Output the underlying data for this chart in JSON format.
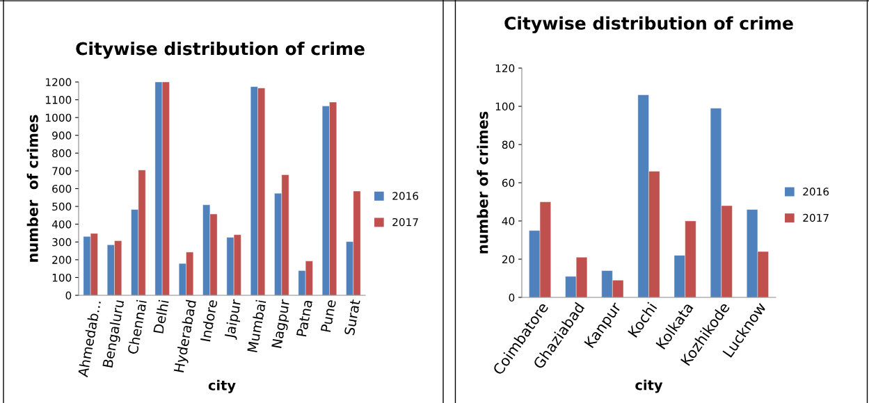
{
  "chart_data": [
    {
      "type": "bar",
      "title": "Citywise distribution of crime",
      "xlabel": "city",
      "ylabel": "number  of crimes",
      "categories": [
        "Ahmedab…",
        "Bengaluru",
        "Chennai",
        "Delhi",
        "Hyderabad",
        "Indore",
        "Jaipur",
        "Mumbai",
        "Nagpur",
        "Patna",
        "Pune",
        "Surat"
      ],
      "series": [
        {
          "name": "2016",
          "color": "#4f81bd",
          "values": [
            331,
            284,
            483,
            1200,
            179,
            509,
            326,
            1174,
            574,
            139,
            1065,
            302
          ]
        },
        {
          "name": "2017",
          "color": "#c0504d",
          "values": [
            348,
            307,
            705,
            1200,
            243,
            457,
            341,
            1166,
            678,
            193,
            1087,
            586
          ]
        }
      ],
      "ylim": [
        0,
        1200
      ],
      "yticks": [
        0,
        100,
        200,
        300,
        400,
        500,
        600,
        700,
        800,
        900,
        1000,
        1100,
        1200
      ],
      "grid": false,
      "legend": "right"
    },
    {
      "type": "bar",
      "title": "Citywise distribution of crime",
      "xlabel": "city",
      "ylabel": "number of crimes",
      "categories": [
        "Coimbatore",
        "Ghaziabad",
        "Kanpur",
        "Kochi",
        "Kolkata",
        "Kozhikode",
        "Lucknow"
      ],
      "series": [
        {
          "name": "2016",
          "color": "#4f81bd",
          "values": [
            35,
            11,
            14,
            106,
            22,
            99,
            46
          ]
        },
        {
          "name": "2017",
          "color": "#c0504d",
          "values": [
            50,
            21,
            9,
            66,
            40,
            48,
            24
          ]
        }
      ],
      "ylim": [
        0,
        120
      ],
      "yticks": [
        0,
        20,
        40,
        60,
        80,
        100,
        120
      ],
      "grid": false,
      "legend": "right"
    }
  ]
}
